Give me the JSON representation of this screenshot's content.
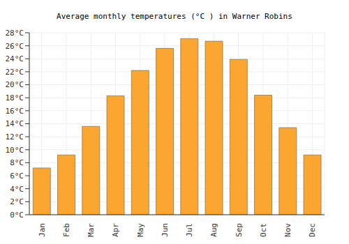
{
  "chart_data": {
    "type": "bar",
    "title": "Average monthly temperatures (°C ) in Warner Robins",
    "categories": [
      "Jan",
      "Feb",
      "Mar",
      "Apr",
      "May",
      "Jun",
      "Jul",
      "Aug",
      "Sep",
      "Oct",
      "Nov",
      "Dec"
    ],
    "values": [
      7.2,
      9.2,
      13.6,
      18.3,
      22.2,
      25.6,
      27.1,
      26.7,
      23.9,
      18.4,
      13.4,
      9.2
    ],
    "color": "#fba631",
    "ylim": [
      0,
      28
    ],
    "yticks": [
      {
        "value": 0,
        "label": "0°C"
      },
      {
        "value": 2,
        "label": "2°C"
      },
      {
        "value": 4,
        "label": "4°C"
      },
      {
        "value": 6,
        "label": "6°C"
      },
      {
        "value": 8,
        "label": "8°C"
      },
      {
        "value": 10,
        "label": "10°C"
      },
      {
        "value": 12,
        "label": "12°C"
      },
      {
        "value": 14,
        "label": "14°C"
      },
      {
        "value": 16,
        "label": "16°C"
      },
      {
        "value": 18,
        "label": "18°C"
      },
      {
        "value": 20,
        "label": "20°C"
      },
      {
        "value": 22,
        "label": "22°C"
      },
      {
        "value": 24,
        "label": "24°C"
      },
      {
        "value": 26,
        "label": "26°C"
      },
      {
        "value": 28,
        "label": "28°C"
      }
    ],
    "grid": true
  }
}
